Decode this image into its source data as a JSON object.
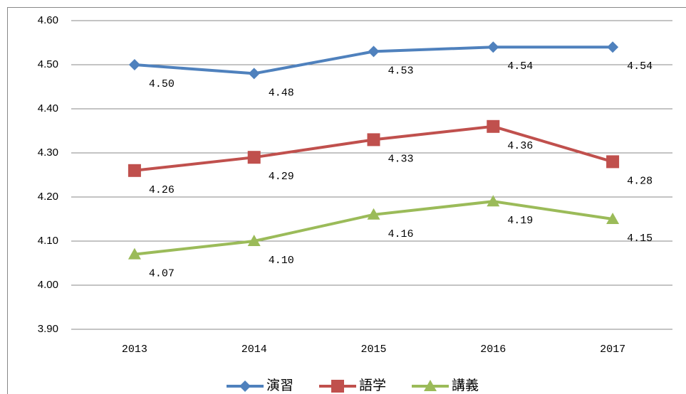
{
  "chart_data": {
    "type": "line",
    "categories": [
      "2013",
      "2014",
      "2015",
      "2016",
      "2017"
    ],
    "series": [
      {
        "name": "演習",
        "color": "#4f81bd",
        "marker": "diamond",
        "values": [
          4.5,
          4.48,
          4.53,
          4.54,
          4.54
        ],
        "value_labels": [
          "4.50",
          "4.48",
          "4.53",
          "4.54",
          "4.54"
        ]
      },
      {
        "name": "語学",
        "color": "#c0504d",
        "marker": "square",
        "values": [
          4.26,
          4.29,
          4.33,
          4.36,
          4.28
        ],
        "value_labels": [
          "4.26",
          "4.29",
          "4.33",
          "4.36",
          "4.28"
        ]
      },
      {
        "name": "講義",
        "color": "#9bbb59",
        "marker": "triangle",
        "values": [
          4.07,
          4.1,
          4.16,
          4.19,
          4.15
        ],
        "value_labels": [
          "4.07",
          "4.10",
          "4.16",
          "4.19",
          "4.15"
        ]
      }
    ],
    "ylim": [
      3.9,
      4.6
    ],
    "yticks": [
      {
        "value": 3.9,
        "label": "3.90"
      },
      {
        "value": 4.0,
        "label": "4.00"
      },
      {
        "value": 4.1,
        "label": "4.10"
      },
      {
        "value": 4.2,
        "label": "4.20"
      },
      {
        "value": 4.3,
        "label": "4.30"
      },
      {
        "value": 4.4,
        "label": "4.40"
      },
      {
        "value": 4.5,
        "label": "4.50"
      },
      {
        "value": 4.6,
        "label": "4.60"
      }
    ],
    "grid": true,
    "legend": "bottom"
  }
}
